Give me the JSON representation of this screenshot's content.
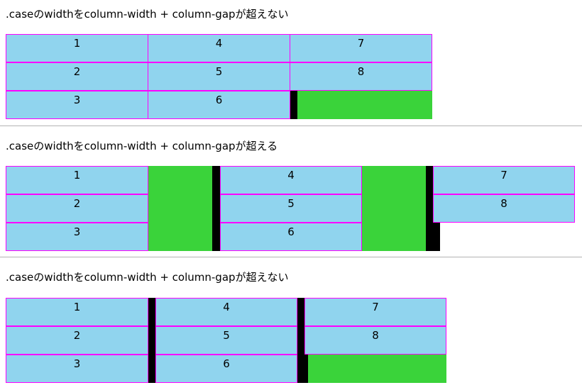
{
  "headings": [
    ".caseのwidthをcolumn-width + column-gapが超えない",
    ".caseのwidthをcolumn-width + column-gapが超える",
    ".caseのwidthをcolumn-width + column-gapが超えない"
  ],
  "items": [
    "1",
    "2",
    "3",
    "4",
    "5",
    "6",
    "7",
    "8"
  ],
  "colors": {
    "box_fill": "#90d4ee",
    "box_border": "#ff00ff",
    "gap_fill": "#3ad33a",
    "rule_fill": "#000000",
    "divider": "#b3b3b3"
  }
}
